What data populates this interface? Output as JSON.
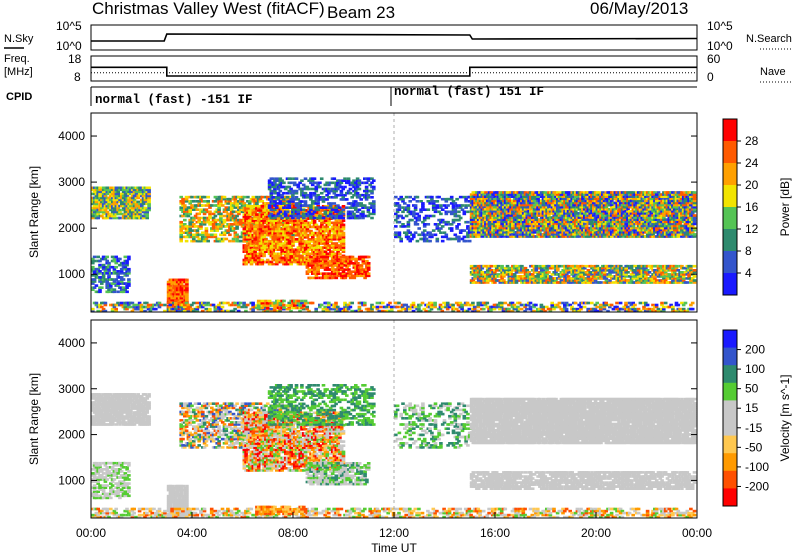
{
  "header": {
    "site": "Christmas Valley West (fitACF)",
    "beam": "Beam 23",
    "date": "06/May/2013"
  },
  "left_labels": {
    "nsky": "N.Sky",
    "freq1": "Freq.",
    "freq2": "[MHz]",
    "cpid": "CPID"
  },
  "right_labels": {
    "nsearch": "N.Search",
    "nave": "Nave"
  },
  "cpid_segments": [
    "normal (fast) -151 IF",
    "normal (fast) 151 IF"
  ],
  "colors": {
    "power": [
      "#1a1aff",
      "#3355cc",
      "#2e8a6e",
      "#55c455",
      "#f2e400",
      "#ffa000",
      "#ff5a00",
      "#ff0000"
    ],
    "velocity": [
      "#ff0000",
      "#ff5000",
      "#ff9a00",
      "#ffc850",
      "#c8c8c8",
      "#c8c8c8",
      "#55cc33",
      "#2e8a6e",
      "#3355cc",
      "#1a1aff"
    ]
  },
  "chart_data": [
    {
      "type": "line",
      "name": "nsky-nsearch",
      "ylabel": "N.Sky",
      "y_ticks_left": [
        "10^5",
        "10^0"
      ],
      "y_ticks_right": [
        "10^5",
        "10^0"
      ],
      "series": [
        {
          "name": "N.Sky",
          "x": [
            0,
            2.9,
            3.0,
            15.0,
            15.1,
            24
          ],
          "values": [
            1.8,
            1.8,
            3.2,
            3.0,
            2.2,
            2.3
          ]
        }
      ]
    },
    {
      "type": "line",
      "name": "frequency-nave",
      "ylabel": "Freq. [MHz]",
      "y_ticks_left": [
        "18",
        "8"
      ],
      "y_ticks_right": [
        "60",
        "0"
      ],
      "series": [
        {
          "name": "Freq.",
          "x": [
            0,
            3.0,
            3.0,
            15.0,
            15.0,
            24
          ],
          "values": [
            13.5,
            13.5,
            10.0,
            10.0,
            13.5,
            13.5
          ]
        },
        {
          "name": "Nave",
          "x": [
            0,
            24
          ],
          "values": [
            20,
            20
          ]
        }
      ]
    },
    {
      "type": "heatmap",
      "name": "power",
      "ylabel": "Slant Range [km]",
      "colorbar_label": "Power [dB]",
      "colorbar_ticks": [
        "28",
        "24",
        "20",
        "16",
        "12",
        "8",
        "4"
      ],
      "yticks": [
        "4000",
        "3000",
        "2000",
        "1000"
      ],
      "ylim": [
        180,
        4500
      ]
    },
    {
      "type": "heatmap",
      "name": "velocity",
      "ylabel": "Slant Range [km]",
      "colorbar_label": "Velocity [m s^-1]",
      "colorbar_ticks": [
        "200",
        "100",
        "50",
        "15",
        "-15",
        "-50",
        "-100",
        "-200"
      ],
      "yticks": [
        "4000",
        "3000",
        "2000",
        "1000"
      ],
      "ylim": [
        180,
        4500
      ]
    }
  ],
  "x_axis": {
    "label": "Time UT",
    "ticks": [
      "00:00",
      "04:00",
      "08:00",
      "12:00",
      "16:00",
      "20:00",
      "00:00"
    ],
    "xlim": [
      0,
      24
    ]
  }
}
